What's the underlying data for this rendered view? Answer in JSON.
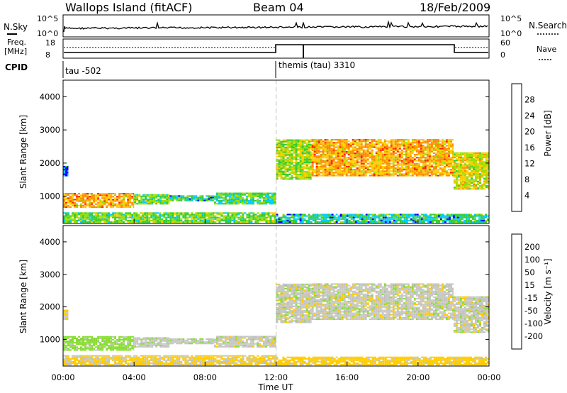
{
  "header": {
    "site": "Wallops Island (fitACF)",
    "beam": "Beam 04",
    "date": "18/Feb/2009"
  },
  "noise_panel": {
    "left_label": "N.Sky",
    "right_label": "N.Search",
    "left_ticks": [
      "10^5",
      "10^0"
    ],
    "right_ticks": [
      "10^5",
      "10^0"
    ]
  },
  "freq_panel": {
    "left_label_1": "Freq.",
    "left_label_2": "[MHz]",
    "right_label": "Nave",
    "left_ticks": [
      "18",
      "8"
    ],
    "right_ticks": [
      "60",
      "0"
    ]
  },
  "cpid_panel": {
    "label": "CPID",
    "modes": [
      "tau -502",
      "themis (tau) 3310"
    ]
  },
  "power_panel": {
    "ylabel": "Slant Range [km]",
    "cb_label": "Power [dB]",
    "cb_ticks": [
      "28",
      "24",
      "20",
      "16",
      "12",
      "8",
      "4"
    ]
  },
  "velocity_panel": {
    "ylabel": "Slant Range [km]",
    "cb_label": "Velocity [m s⁻¹]",
    "cb_ticks": [
      "200",
      "100",
      "50",
      "15",
      "-15",
      "-50",
      "-100",
      "-200"
    ]
  },
  "x_axis": {
    "label": "Time UT",
    "ticks": [
      "00:00",
      "04:00",
      "08:00",
      "12:00",
      "16:00",
      "20:00",
      "00:00"
    ]
  },
  "colors": {
    "power": [
      "#0000ff",
      "#00ccff",
      "#33cc33",
      "#99dd00",
      "#ffcc00",
      "#ff8800",
      "#ff2200"
    ],
    "velocity": [
      "#2233cc",
      "#2c9a6a",
      "#33aa33",
      "#88dd33",
      "#c0c0c0",
      "#ffcc00",
      "#ff8800",
      "#ff4400",
      "#dd0000"
    ],
    "velocity_ground": "#c8c8c4"
  },
  "chart_data": {
    "type": "heatmap",
    "x_range_hours": [
      0,
      24
    ],
    "y_range_km": [
      180,
      4500
    ],
    "y_ticks_km": [
      1000,
      2000,
      3000,
      4000
    ],
    "mode_change_hour": 12,
    "backscatter_regions": [
      {
        "t0": 0.0,
        "t1": 0.3,
        "r0": 1600,
        "r1": 1900,
        "power_db": 6,
        "velocity": -10
      },
      {
        "t0": 0.0,
        "t1": 4.0,
        "r0": 650,
        "r1": 1100,
        "power_db": 22,
        "velocity": 30
      },
      {
        "t0": 4.0,
        "t1": 6.0,
        "r0": 750,
        "r1": 1050,
        "power_db": 14,
        "velocity": 5
      },
      {
        "t0": 6.0,
        "t1": 8.5,
        "r0": 850,
        "r1": 1000,
        "power_db": 10,
        "velocity": 5
      },
      {
        "t0": 8.5,
        "t1": 12.0,
        "r0": 750,
        "r1": 1080,
        "power_db": 12,
        "velocity": 0
      },
      {
        "t0": 0.0,
        "t1": 12.0,
        "r0": 200,
        "r1": 500,
        "power_db": 14,
        "velocity": -20
      },
      {
        "t0": 12.0,
        "t1": 14.0,
        "r0": 1500,
        "r1": 2700,
        "power_db": 16,
        "velocity": 0
      },
      {
        "t0": 14.0,
        "t1": 22.0,
        "r0": 1600,
        "r1": 2700,
        "power_db": 22,
        "velocity": 0
      },
      {
        "t0": 22.0,
        "t1": 24.0,
        "r0": 1200,
        "r1": 2300,
        "power_db": 18,
        "velocity": 0
      },
      {
        "t0": 12.0,
        "t1": 24.0,
        "r0": 200,
        "r1": 450,
        "power_db": 10,
        "velocity": -30
      }
    ]
  }
}
